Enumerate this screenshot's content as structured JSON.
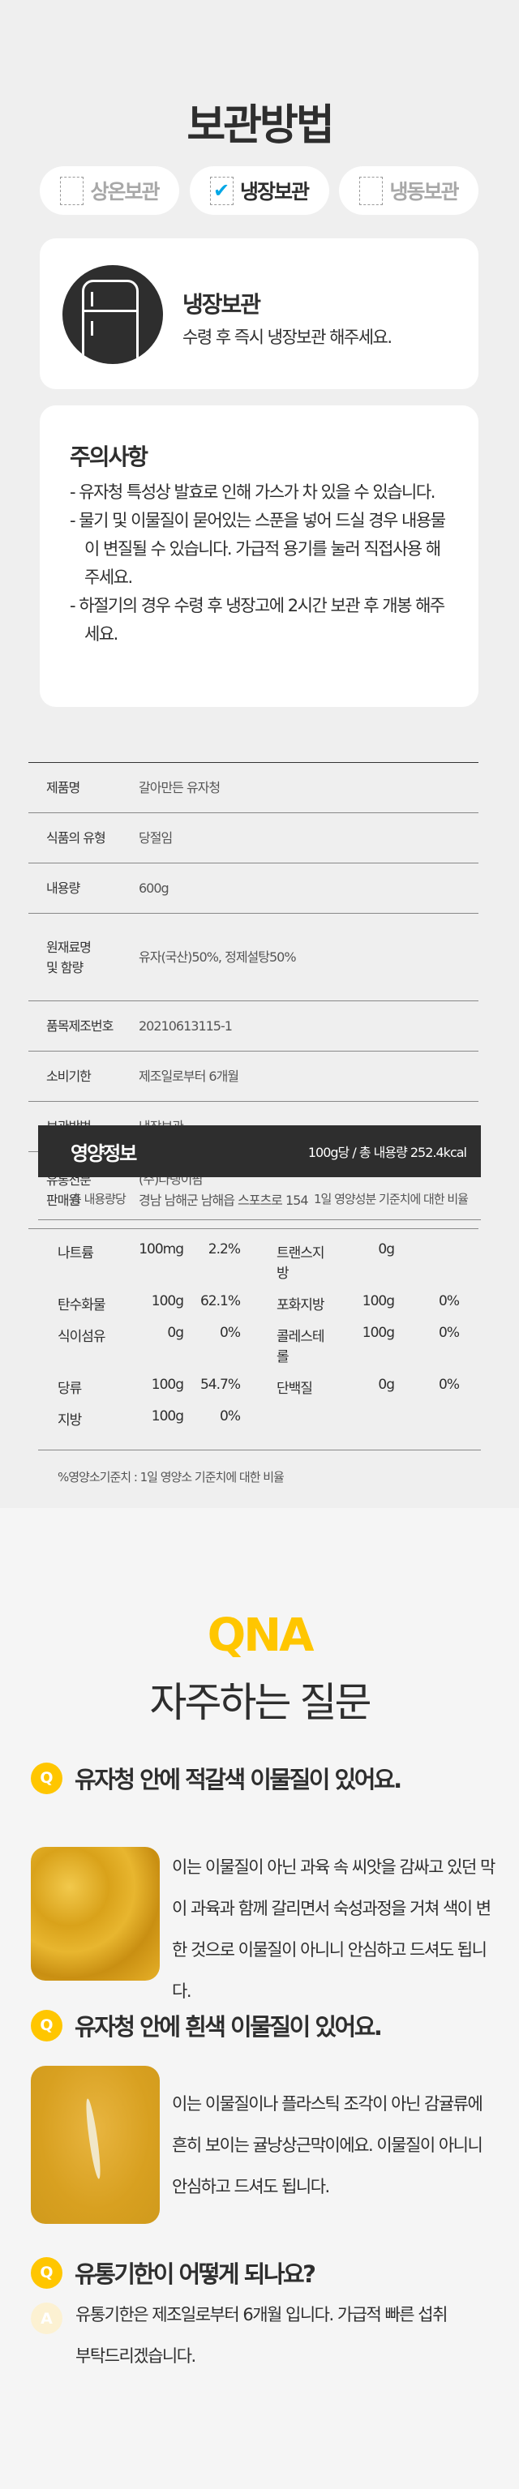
{
  "storage": {
    "title": "보관방법",
    "options": [
      {
        "label": "상온보관",
        "checked": false
      },
      {
        "label": "냉장보관",
        "checked": true
      },
      {
        "label": "냉동보관",
        "checked": false
      }
    ],
    "check_color": "#00a7e6",
    "card": {
      "icon": "fridge-icon",
      "title": "냉장보관",
      "desc": "수령 후 즉시 냉장보관 해주세요."
    }
  },
  "caution": {
    "title": "주의사항",
    "items": [
      "- 유자청 특성상 발효로 인해 가스가 차 있을 수 있습니다.",
      "- 물기 및 이물질이 묻어있는 스푼을 넣어 드실 경우 내용물이 변질될 수 있습니다. 가급적 용기를 눌러 직접사용 해주세요.",
      "- 하절기의 경우 수령 후 냉장고에 2시간 보관 후 개봉 해주세요."
    ]
  },
  "product_table": [
    {
      "k": "제품명",
      "v": "갈아만든 유자청"
    },
    {
      "k": "식품의 유형",
      "v": "당절임"
    },
    {
      "k": "내용량",
      "v": "600g"
    },
    {
      "k": "원재료명\n및 함량",
      "v": "유자(국산)50%, 정제설탕50%"
    },
    {
      "k": "품목제조번호",
      "v": "20210613115-1"
    },
    {
      "k": "소비기한",
      "v": "제조일로부터 6개월"
    },
    {
      "k": "보관방법",
      "v": "냉장보관"
    },
    {
      "k": "유통전문\n판매원",
      "v": "(주)다랭이팜\n경남 남해군 남해읍 스포츠로 154"
    }
  ],
  "nutrition": {
    "title": "영양정보",
    "serving": "100g당 / 총 내용량 252.4kcal",
    "sub_left": "총 내용량당",
    "sub_right": "1일 영양성분 기준치에 대한 비율",
    "rows": [
      [
        "나트륨",
        "100mg",
        "2.2%",
        "트랜스지방",
        "0g",
        ""
      ],
      [
        "탄수화물",
        "100g",
        "62.1%",
        "포화지방",
        "100g",
        "0%"
      ],
      [
        "식이섬유",
        "0g",
        "0%",
        "콜레스테롤",
        "100g",
        "0%"
      ],
      [
        "당류",
        "100g",
        "54.7%",
        "단백질",
        "0g",
        "0%"
      ],
      [
        "지방",
        "100g",
        "0%",
        "",
        "",
        ""
      ]
    ],
    "footnote": "%영양소기준치 : 1일 영양소 기준치에 대한 비율"
  },
  "qna": {
    "label": "QNA",
    "title": "자주하는 질문",
    "accent": "#ffc600",
    "q_badge": "Q",
    "a_badge": "A",
    "items": [
      {
        "q": "유자청 안에 적갈색 이물질이 있어요.",
        "a": "이는 이물질이 아닌 과육 속 씨앗을 감싸고 있던 막이 과육과 함께 갈리면서 숙성과정을 거쳐 색이 변한 것으로 이물질이 아니니 안심하고 드셔도 됩니다."
      },
      {
        "q": "유자청 안에 흰색 이물질이 있어요.",
        "a": "이는 이물질이나 플라스틱 조각이 아닌 감귤류에  흔히 보이는 귤낭상근막이에요. 이물질이 아니니 안심하고 드셔도 됩니다."
      },
      {
        "q": "유통기한이 어떻게 되나요?",
        "a": "유통기한은 제조일로부터 6개월 입니다. 가급적 빠른 섭취 부탁드리겠습니다."
      }
    ]
  }
}
